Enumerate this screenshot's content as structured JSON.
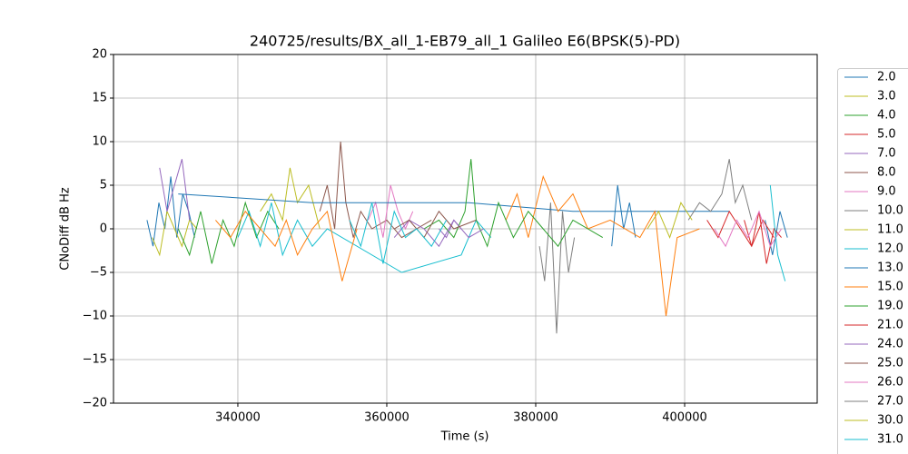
{
  "chart_data": {
    "type": "line",
    "title": "240725/results/BX_all_1-EB79_all_1 Galileo E6(BPSK(5)-PD)",
    "x_label": "Time (s)",
    "y_label": "CNoDiff dB Hz",
    "xlim": [
      323300,
      417800
    ],
    "ylim": [
      -20,
      20
    ],
    "xticks": [
      340000,
      360000,
      380000,
      400000
    ],
    "yticks": [
      {
        "value": -20,
        "label": "−20"
      },
      {
        "value": -15,
        "label": "−15"
      },
      {
        "value": -10,
        "label": "−10"
      },
      {
        "value": -5,
        "label": "−5"
      },
      0,
      5,
      10,
      15,
      20
    ],
    "grid": true,
    "series": [
      {
        "name": "2.0",
        "color": "#1f77b4",
        "x": [
          327800,
          328600,
          329400,
          330200,
          331000,
          331800,
          332600,
          333400,
          334200,
          360000,
          390200,
          391000,
          391800,
          392600,
          393400,
          400000,
          410800,
          411800,
          412800,
          413800
        ],
        "values": [
          1,
          -2,
          3,
          0,
          6,
          -1,
          4,
          2,
          -1,
          null,
          -2,
          5,
          0,
          3,
          -1,
          null,
          1,
          -3,
          2,
          -1
        ]
      },
      {
        "name": "3.0",
        "color": "#bcbd22",
        "x": [
          328500,
          329500,
          330500,
          331500,
          332500,
          333500,
          334500
        ],
        "values": [
          -1,
          -3,
          2,
          0,
          -2,
          1,
          0
        ]
      },
      {
        "name": "4.0",
        "color": "#2ca02c",
        "x": [
          332000,
          333500,
          335000,
          336500,
          338000,
          339500,
          341000,
          342500,
          344000,
          345500
        ],
        "values": [
          0,
          -3,
          2,
          -4,
          1,
          -2,
          3,
          -1,
          2,
          0
        ]
      },
      {
        "name": "5.0",
        "color": "#d62728",
        "x": [
          408000,
          409000,
          410000,
          411000,
          412000,
          413000
        ],
        "values": [
          1,
          -2,
          2,
          -4,
          0,
          -1
        ]
      },
      {
        "name": "7.0",
        "color": "#9467bd",
        "x": [
          329500,
          330500,
          331500,
          332500,
          333500,
          366000,
          367000,
          368000,
          369000,
          370000
        ],
        "values": [
          7,
          2,
          5,
          8,
          1,
          null,
          0,
          -1,
          1,
          0
        ]
      },
      {
        "name": "8.0",
        "color": "#8c564b",
        "x": [
          351000,
          352000,
          353000,
          353800,
          354500,
          355500,
          356500,
          358000,
          360000,
          362000,
          364000,
          366000
        ],
        "values": [
          2,
          5,
          0,
          10,
          3,
          -1,
          2,
          0,
          1,
          -1,
          0,
          1
        ]
      },
      {
        "name": "9.0",
        "color": "#e377c2",
        "x": [
          357500,
          358500,
          359500,
          360500,
          361500,
          362500,
          363500
        ],
        "values": [
          1,
          3,
          -1,
          5,
          2,
          0,
          2
        ]
      },
      {
        "name": "10.0",
        "color": "#7f7f7f",
        "x": [
          380500,
          381200,
          382000,
          382800,
          383600,
          384400,
          385200
        ],
        "values": [
          -2,
          -6,
          3,
          -12,
          2,
          -5,
          -1
        ]
      },
      {
        "name": "11.0",
        "color": "#bcbd22",
        "x": [
          343000,
          344500,
          346000,
          347000,
          348000,
          349500,
          351000
        ],
        "values": [
          2,
          4,
          1,
          7,
          3,
          5,
          0
        ]
      },
      {
        "name": "12.0",
        "color": "#17becf",
        "x": [
          340000,
          341500,
          343000,
          344500,
          346000,
          348000,
          350000,
          352000,
          362000,
          370000,
          372000,
          374000
        ],
        "values": [
          -1,
          2,
          -2,
          3,
          -3,
          1,
          -2,
          0,
          -5,
          -3,
          1,
          -1
        ]
      },
      {
        "name": "13.0",
        "color": "#1f77b4",
        "x": [
          332000,
          350000,
          371000,
          385000,
          400000,
          404000,
          406000
        ],
        "values": [
          4,
          3,
          3,
          2,
          2,
          2,
          2
        ]
      },
      {
        "name": "15.0",
        "color": "#ff7f0e",
        "x": [
          337000,
          339000,
          341000,
          343000,
          345000,
          346500,
          348000,
          350000,
          352000,
          354000,
          356000,
          374000,
          376000,
          377500,
          379000,
          381000,
          383000,
          385000,
          387000,
          390000,
          394000,
          396000,
          397500,
          399000,
          402000
        ],
        "values": [
          1,
          -1,
          2,
          0,
          -2,
          1,
          -3,
          0,
          2,
          -6,
          0,
          null,
          1,
          4,
          -1,
          6,
          2,
          4,
          0,
          1,
          -1,
          2,
          -10,
          -1,
          0
        ]
      },
      {
        "name": "19.0",
        "color": "#2ca02c",
        "x": [
          365000,
          367000,
          369000,
          370500,
          371300,
          372000,
          373500,
          375000,
          377000,
          379000,
          381000,
          383000,
          385000,
          387000,
          389000
        ],
        "values": [
          0,
          1,
          -1,
          2,
          8,
          1,
          -2,
          3,
          -1,
          2,
          0,
          -2,
          1,
          0,
          -1
        ]
      },
      {
        "name": "21.0",
        "color": "#d62728",
        "x": [
          403000,
          404500,
          406000,
          407500,
          409000,
          410500,
          412000
        ],
        "values": [
          1,
          -1,
          2,
          0,
          -2,
          1,
          -1
        ]
      },
      {
        "name": "24.0",
        "color": "#9467bd",
        "x": [
          361000,
          363000,
          365000,
          367000,
          369000,
          371000,
          373000
        ],
        "values": [
          -1,
          1,
          0,
          -2,
          1,
          -1,
          0
        ]
      },
      {
        "name": "25.0",
        "color": "#8c564b",
        "x": [
          361000,
          363000,
          365000,
          367000,
          369000,
          372000
        ],
        "values": [
          0,
          1,
          -1,
          2,
          0,
          1
        ]
      },
      {
        "name": "26.0",
        "color": "#e377c2",
        "x": [
          404000,
          405500,
          407000,
          408500,
          410000,
          411500,
          413000
        ],
        "values": [
          0,
          -2,
          1,
          -1,
          2,
          -2,
          0
        ]
      },
      {
        "name": "27.0",
        "color": "#7f7f7f",
        "x": [
          400500,
          402000,
          403500,
          405000,
          406000,
          406800,
          407800,
          409000
        ],
        "values": [
          1,
          3,
          2,
          4,
          8,
          3,
          5,
          1
        ]
      },
      {
        "name": "30.0",
        "color": "#bcbd22",
        "x": [
          395000,
          396500,
          398000,
          399500,
          401000
        ],
        "values": [
          0,
          2,
          -1,
          3,
          1
        ]
      },
      {
        "name": "31.0",
        "color": "#17becf",
        "x": [
          355000,
          356500,
          358000,
          359500,
          361000,
          362500,
          364000,
          366000,
          368000,
          410500,
          411500,
          412500,
          413500
        ],
        "values": [
          1,
          -2,
          3,
          -4,
          2,
          -1,
          0,
          -2,
          1,
          null,
          5,
          -3,
          -6
        ]
      }
    ]
  }
}
